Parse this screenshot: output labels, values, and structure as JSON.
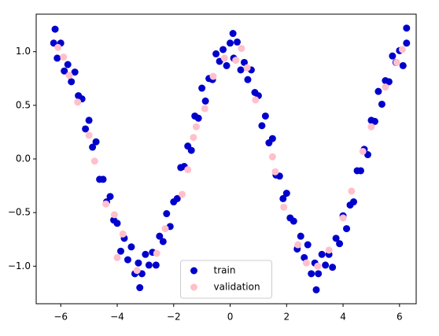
{
  "chart_data": {
    "type": "scatter",
    "xlim": [
      -6.87,
      6.59
    ],
    "ylim": [
      -1.35,
      1.35
    ],
    "xticks": [
      {
        "value": -6,
        "label": "−6"
      },
      {
        "value": -4,
        "label": "−4"
      },
      {
        "value": -2,
        "label": "−2"
      },
      0,
      2,
      4,
      6
    ],
    "yticks": [
      {
        "value": -1.0,
        "label": "−1.0"
      },
      {
        "value": -0.5,
        "label": "−0.5"
      },
      {
        "value": 0.0,
        "label": "0.0"
      },
      {
        "value": 0.5,
        "label": "0.5"
      },
      {
        "value": 1.0,
        "label": "1.0"
      }
    ],
    "grid": false,
    "legend": "lower center",
    "series": [
      {
        "name": "train",
        "color": "#0000cc",
        "x": [
          -6.25,
          -6.125,
          -6.0,
          -5.875,
          -5.75,
          -5.625,
          -5.5,
          -5.375,
          -5.25,
          -5.125,
          -5.0,
          -4.875,
          -4.75,
          -4.625,
          -4.5,
          -4.375,
          -4.25,
          -4.125,
          -4.0,
          -3.875,
          -3.75,
          -3.625,
          -3.5,
          -3.375,
          -3.25,
          -3.125,
          -3.0,
          -2.875,
          -2.75,
          -2.625,
          -2.5,
          -2.375,
          -2.25,
          -2.125,
          -2.0,
          -1.875,
          -1.75,
          -1.625,
          -1.5,
          -1.375,
          -1.25,
          -1.125,
          -1.0,
          -0.875,
          -0.75,
          -0.625,
          -0.5,
          -0.375,
          -0.25,
          -0.125,
          0,
          0.125,
          0.25,
          0.375,
          0.5,
          0.625,
          0.75,
          0.875,
          1.0,
          1.125,
          1.25,
          1.375,
          1.5,
          1.625,
          1.75,
          1.875,
          2.0,
          2.125,
          2.25,
          2.375,
          2.5,
          2.625,
          2.75,
          2.875,
          3.0,
          3.125,
          3.25,
          3.375,
          3.5,
          3.625,
          3.75,
          3.875,
          4.0,
          4.125,
          4.25,
          4.375,
          4.5,
          4.625,
          4.75,
          4.875,
          5.0,
          5.125,
          5.25,
          5.375,
          5.5,
          5.625,
          5.75,
          5.875,
          6.0,
          6.125,
          6.25,
          -6.2,
          6.25,
          -3.2,
          3.05,
          0.1
        ],
        "values": [
          1.08,
          0.94,
          1.08,
          0.82,
          0.88,
          0.72,
          0.81,
          0.59,
          0.56,
          0.28,
          0.36,
          0.11,
          0.16,
          -0.19,
          -0.19,
          -0.4,
          -0.35,
          -0.57,
          -0.6,
          -0.86,
          -0.74,
          -0.94,
          -0.82,
          -1.07,
          -0.97,
          -1.07,
          -0.89,
          -0.99,
          -0.87,
          -0.99,
          -0.72,
          -0.77,
          -0.51,
          -0.63,
          -0.4,
          -0.37,
          -0.08,
          -0.07,
          0.12,
          0.08,
          0.4,
          0.38,
          0.66,
          0.54,
          0.75,
          0.74,
          0.98,
          0.91,
          1.02,
          0.87,
          1.08,
          0.94,
          1.09,
          0.83,
          0.9,
          0.74,
          0.83,
          0.62,
          0.59,
          0.31,
          0.4,
          0.15,
          0.19,
          -0.15,
          -0.16,
          -0.37,
          -0.32,
          -0.55,
          -0.58,
          -0.84,
          -0.72,
          -0.92,
          -0.8,
          -1.07,
          -0.97,
          -1.07,
          -0.89,
          -0.99,
          -0.89,
          -1.01,
          -0.74,
          -0.79,
          -0.53,
          -0.65,
          -0.43,
          -0.4,
          -0.11,
          -0.11,
          0.09,
          0.04,
          0.36,
          0.35,
          0.63,
          0.51,
          0.73,
          0.72,
          0.96,
          0.9,
          1.01,
          0.87,
          1.08,
          1.21,
          1.22,
          -1.2,
          -1.22,
          1.17
        ]
      },
      {
        "name": "validation",
        "color": "#ffc0cb",
        "x": [
          -6.1,
          -5.9,
          -5.7,
          -5.4,
          -5.0,
          -4.8,
          -4.4,
          -4.1,
          -4.0,
          -3.8,
          -3.3,
          -2.6,
          -2.3,
          -1.7,
          -1.5,
          -1.3,
          -1.2,
          -0.9,
          -0.6,
          -0.2,
          0.2,
          0.4,
          0.6,
          0.9,
          1.5,
          1.6,
          1.9,
          2.4,
          2.7,
          3.1,
          3.5,
          4.0,
          4.3,
          4.7,
          5.0,
          5.5,
          5.9,
          6.1
        ],
        "values": [
          1.04,
          0.95,
          0.78,
          0.53,
          0.22,
          -0.02,
          -0.42,
          -0.52,
          -0.92,
          -0.7,
          -1.04,
          -0.88,
          -0.65,
          -0.33,
          -0.1,
          0.2,
          0.3,
          0.47,
          0.77,
          0.94,
          0.92,
          1.03,
          0.85,
          0.55,
          0.02,
          -0.12,
          -0.45,
          -0.8,
          -0.97,
          -1.0,
          -0.85,
          -0.55,
          -0.3,
          0.07,
          0.3,
          0.67,
          0.9,
          1.02
        ]
      }
    ]
  }
}
